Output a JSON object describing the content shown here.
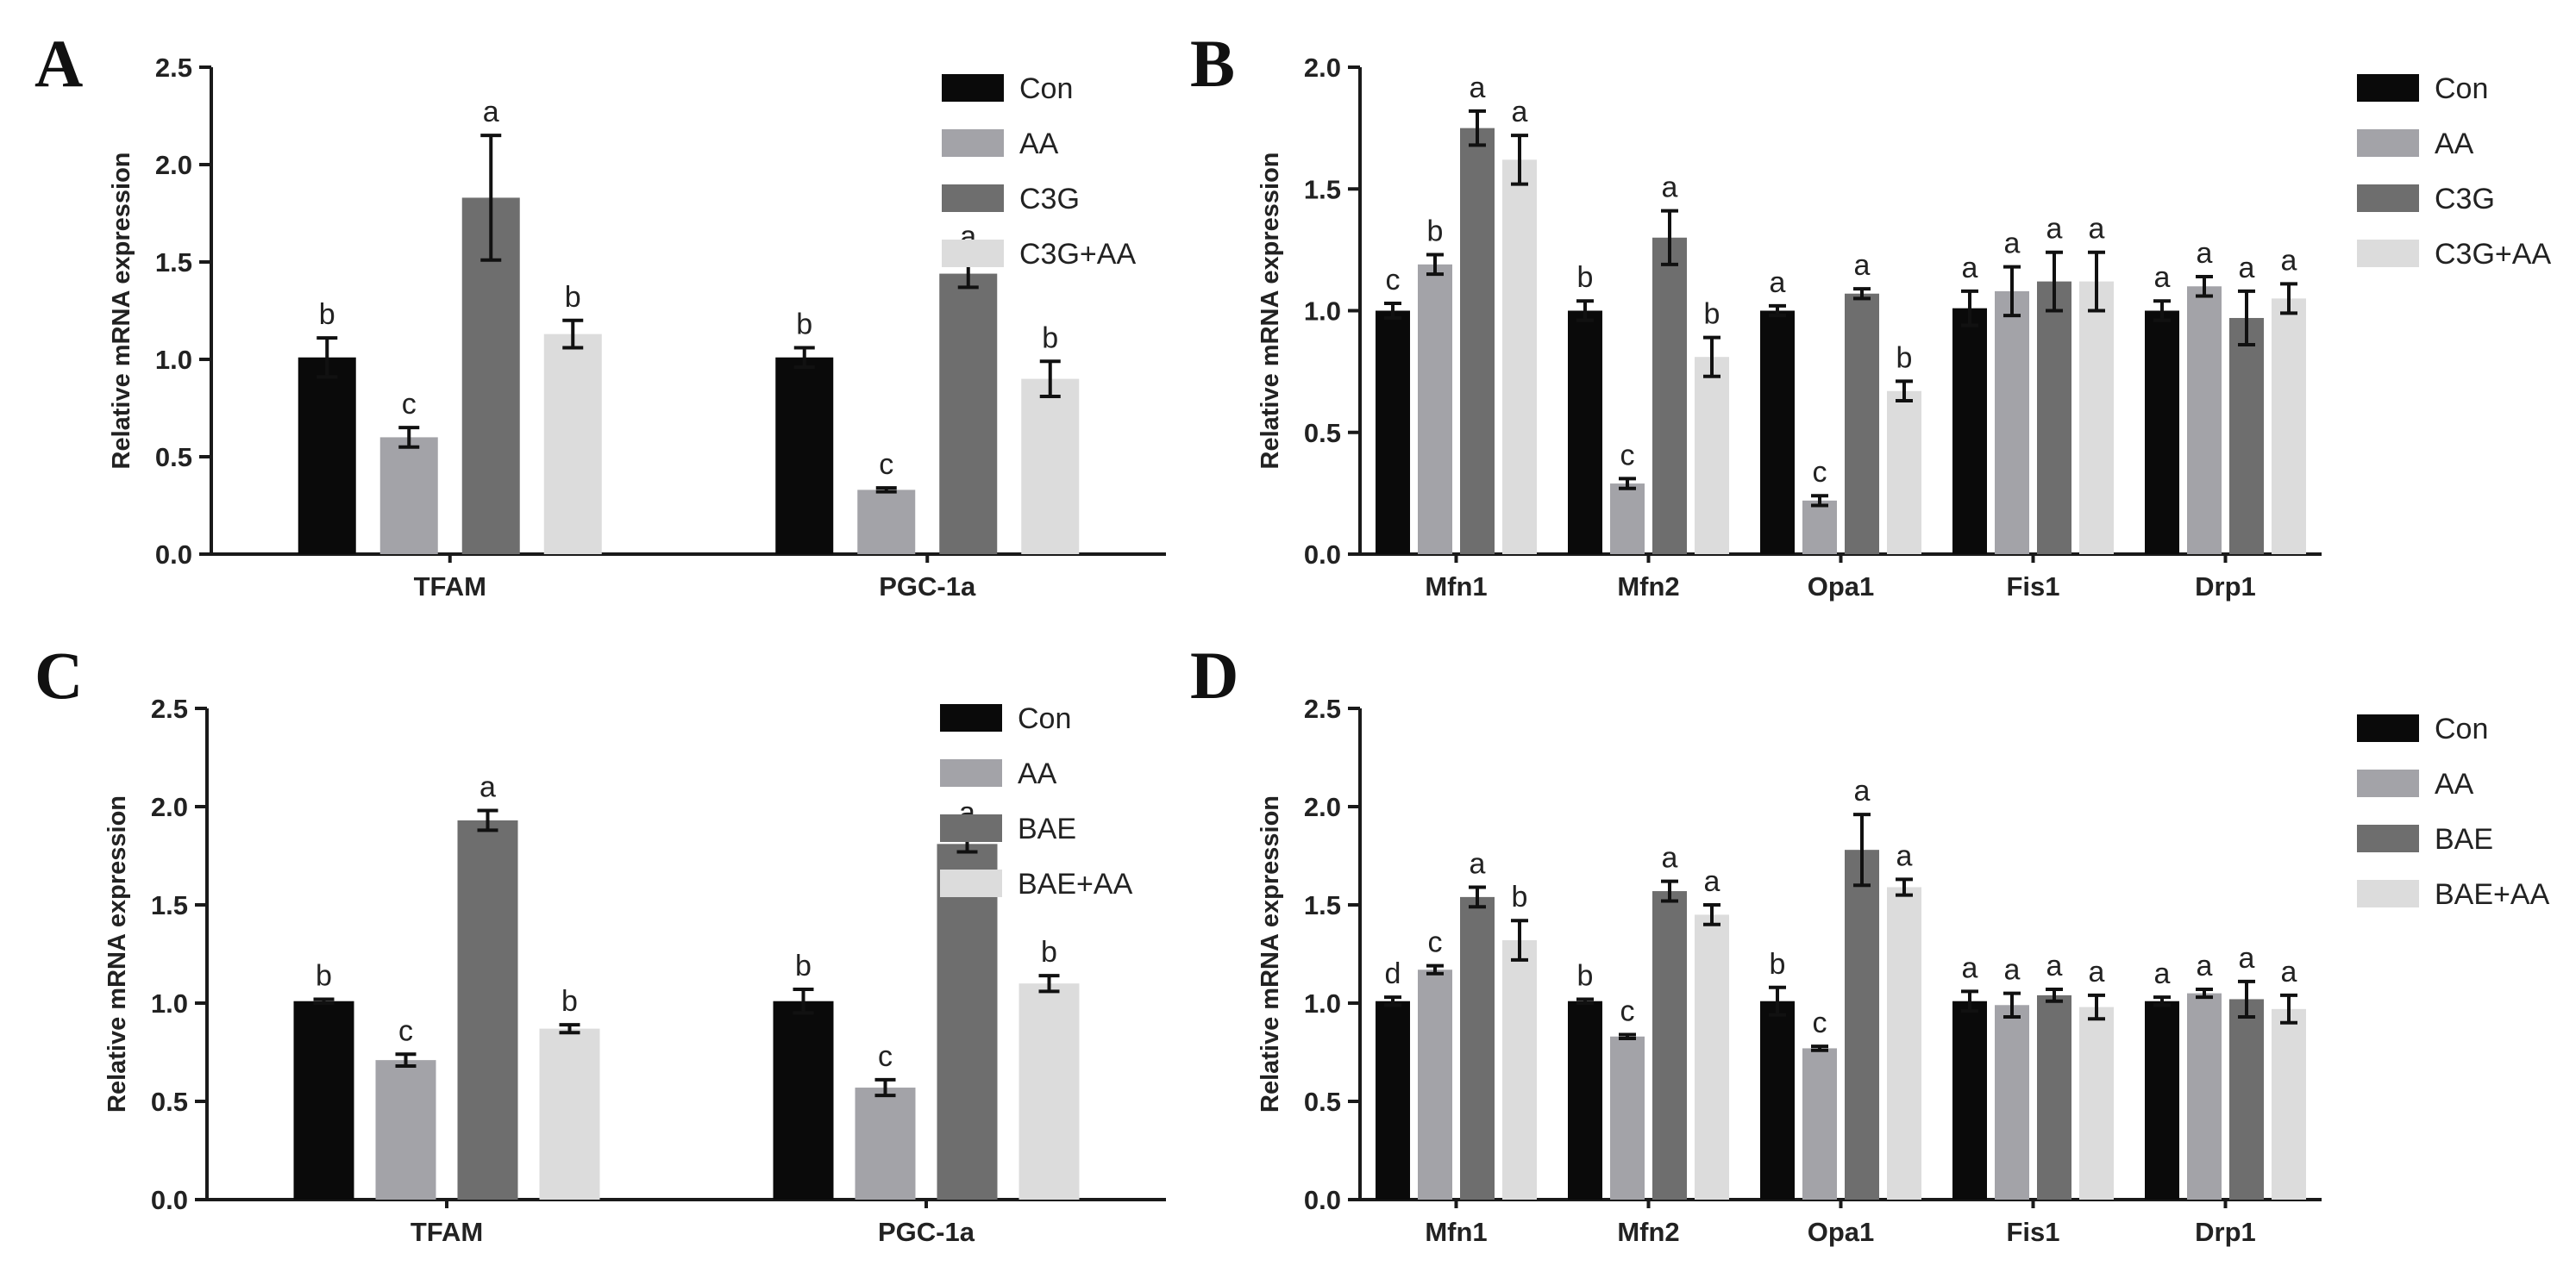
{
  "figure": {
    "colors": {
      "Con": "#0a0a0a",
      "AA": "#a3a3a8",
      "C3G": "#6e6e6e",
      "C3G+AA": "#dcdcdc",
      "BAE": "#6e6e6e",
      "BAE+AA": "#dcdcdc"
    }
  },
  "chart_data": [
    {
      "panel": "A",
      "type": "bar",
      "ylabel": "Relative mRNA expression",
      "ylim": [
        0,
        2.5
      ],
      "yticks": [
        "0.0",
        "0.5",
        "1.0",
        "1.5",
        "2.0",
        "2.5"
      ],
      "categories": [
        "TFAM",
        "PGC-1a"
      ],
      "series": [
        {
          "name": "Con",
          "values": [
            1.01,
            1.01
          ],
          "errors": [
            0.1,
            0.05
          ],
          "letters": [
            "b",
            "b"
          ]
        },
        {
          "name": "AA",
          "values": [
            0.6,
            0.33
          ],
          "errors": [
            0.05,
            0.01
          ],
          "letters": [
            "c",
            "c"
          ]
        },
        {
          "name": "C3G",
          "values": [
            1.83,
            1.44
          ],
          "errors": [
            0.32,
            0.07
          ],
          "letters": [
            "a",
            "a"
          ]
        },
        {
          "name": "C3G+AA",
          "values": [
            1.13,
            0.9
          ],
          "errors": [
            0.07,
            0.09
          ],
          "letters": [
            "b",
            "b"
          ]
        }
      ]
    },
    {
      "panel": "B",
      "type": "bar",
      "ylabel": "Relative mRNA expression",
      "ylim": [
        0,
        2.0
      ],
      "yticks": [
        "0.0",
        "0.5",
        "1.0",
        "1.5",
        "2.0"
      ],
      "categories": [
        "Mfn1",
        "Mfn2",
        "Opa1",
        "Fis1",
        "Drp1"
      ],
      "series": [
        {
          "name": "Con",
          "values": [
            1.0,
            1.0,
            1.0,
            1.01,
            1.0
          ],
          "errors": [
            0.03,
            0.04,
            0.02,
            0.07,
            0.04
          ],
          "letters": [
            "c",
            "b",
            "a",
            "a",
            "a"
          ]
        },
        {
          "name": "AA",
          "values": [
            1.19,
            0.29,
            0.22,
            1.08,
            1.1
          ],
          "errors": [
            0.04,
            0.02,
            0.02,
            0.1,
            0.04
          ],
          "letters": [
            "b",
            "c",
            "c",
            "a",
            "a"
          ]
        },
        {
          "name": "C3G",
          "values": [
            1.75,
            1.3,
            1.07,
            1.12,
            0.97
          ],
          "errors": [
            0.07,
            0.11,
            0.02,
            0.12,
            0.11
          ],
          "letters": [
            "a",
            "a",
            "a",
            "a",
            "a"
          ]
        },
        {
          "name": "C3G+AA",
          "values": [
            1.62,
            0.81,
            0.67,
            1.12,
            1.05
          ],
          "errors": [
            0.1,
            0.08,
            0.04,
            0.12,
            0.06
          ],
          "letters": [
            "a",
            "b",
            "b",
            "a",
            "a"
          ]
        }
      ]
    },
    {
      "panel": "C",
      "type": "bar",
      "ylabel": "Relative mRNA expression",
      "ylim": [
        0,
        2.5
      ],
      "yticks": [
        "0.0",
        "0.5",
        "1.0",
        "1.5",
        "2.0",
        "2.5"
      ],
      "categories": [
        "TFAM",
        "PGC-1a"
      ],
      "series": [
        {
          "name": "Con",
          "values": [
            1.01,
            1.01
          ],
          "errors": [
            0.01,
            0.06
          ],
          "letters": [
            "b",
            "b"
          ]
        },
        {
          "name": "AA",
          "values": [
            0.71,
            0.57
          ],
          "errors": [
            0.03,
            0.04
          ],
          "letters": [
            "c",
            "c"
          ]
        },
        {
          "name": "BAE",
          "values": [
            1.93,
            1.81
          ],
          "errors": [
            0.05,
            0.04
          ],
          "letters": [
            "a",
            "a"
          ]
        },
        {
          "name": "BAE+AA",
          "values": [
            0.87,
            1.1
          ],
          "errors": [
            0.02,
            0.04
          ],
          "letters": [
            "b",
            "b"
          ]
        }
      ]
    },
    {
      "panel": "D",
      "type": "bar",
      "ylabel": "Relative mRNA expression",
      "ylim": [
        0,
        2.5
      ],
      "yticks": [
        "0.0",
        "0.5",
        "1.0",
        "1.5",
        "2.0",
        "2.5"
      ],
      "categories": [
        "Mfn1",
        "Mfn2",
        "Opa1",
        "Fis1",
        "Drp1"
      ],
      "series": [
        {
          "name": "Con",
          "values": [
            1.01,
            1.01,
            1.01,
            1.01,
            1.01
          ],
          "errors": [
            0.02,
            0.01,
            0.07,
            0.05,
            0.02
          ],
          "letters": [
            "d",
            "b",
            "b",
            "a",
            "a"
          ]
        },
        {
          "name": "AA",
          "values": [
            1.17,
            0.83,
            0.77,
            0.99,
            1.05
          ],
          "errors": [
            0.02,
            0.01,
            0.01,
            0.06,
            0.02
          ],
          "letters": [
            "c",
            "c",
            "c",
            "a",
            "a"
          ]
        },
        {
          "name": "BAE",
          "values": [
            1.54,
            1.57,
            1.78,
            1.04,
            1.02
          ],
          "errors": [
            0.05,
            0.05,
            0.18,
            0.03,
            0.09
          ],
          "letters": [
            "a",
            "a",
            "a",
            "a",
            "a"
          ]
        },
        {
          "name": "BAE+AA",
          "values": [
            1.32,
            1.45,
            1.59,
            0.98,
            0.97
          ],
          "errors": [
            0.1,
            0.05,
            0.04,
            0.06,
            0.07
          ],
          "letters": [
            "b",
            "a",
            "a",
            "a",
            "a"
          ]
        }
      ]
    }
  ]
}
